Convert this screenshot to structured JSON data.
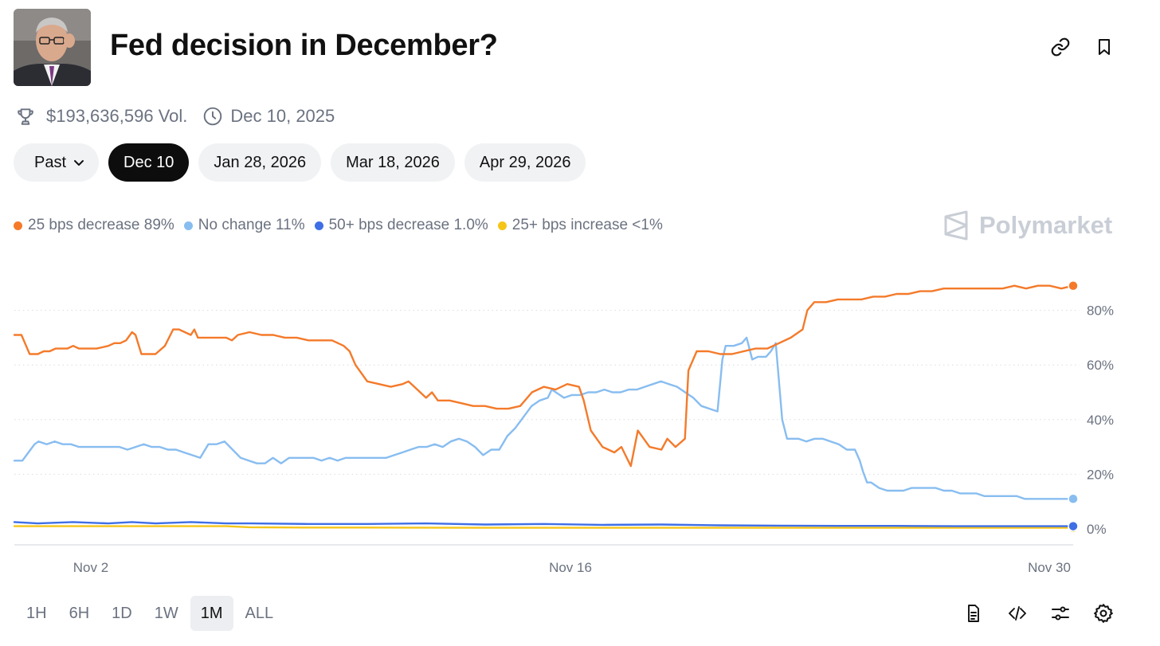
{
  "header": {
    "title": "Fed decision in December?"
  },
  "meta": {
    "volume": "$193,636,596 Vol.",
    "date": "Dec 10, 2025"
  },
  "date_filters": {
    "past_label": "Past",
    "items": [
      "Dec 10",
      "Jan 28, 2026",
      "Mar 18, 2026",
      "Apr 29, 2026"
    ],
    "active": "Dec 10"
  },
  "brand": {
    "name": "Polymarket"
  },
  "legend": [
    {
      "text": "25 bps decrease 89%",
      "color": "#f47a2a"
    },
    {
      "text": "No change 11%",
      "color": "#88bdf0"
    },
    {
      "text": "50+ bps decrease 1.0%",
      "color": "#3f6fe6"
    },
    {
      "text": "25+ bps increase <1%",
      "color": "#f5c518"
    }
  ],
  "time_ranges": {
    "items": [
      "1H",
      "6H",
      "1D",
      "1W",
      "1M",
      "ALL"
    ],
    "active": "1M"
  },
  "toolbar_icons": [
    "document-icon",
    "code-icon",
    "sliders-icon",
    "settings-icon"
  ],
  "chart_data": {
    "type": "line",
    "x_ticks": [
      "Nov 2",
      "Nov 16",
      "Nov 30"
    ],
    "y_ticks": [
      "0%",
      "20%",
      "40%",
      "60%",
      "80%"
    ],
    "ylim": [
      0,
      100
    ],
    "x_range_days": [
      0,
      32
    ],
    "grid": true,
    "series": [
      {
        "name": "25 bps decrease",
        "color": "#f47a2a",
        "points": [
          [
            0,
            71
          ],
          [
            0.6,
            71
          ],
          [
            1,
            67
          ],
          [
            1.3,
            64
          ],
          [
            2,
            64
          ],
          [
            2.5,
            65
          ],
          [
            3,
            65
          ],
          [
            3.5,
            66
          ],
          [
            4.5,
            66
          ],
          [
            5,
            67
          ],
          [
            5.5,
            66
          ],
          [
            6,
            66
          ],
          [
            7,
            66
          ],
          [
            8,
            67
          ],
          [
            8.5,
            68
          ],
          [
            9,
            68
          ],
          [
            9.5,
            69
          ],
          [
            10,
            72
          ],
          [
            10.3,
            71
          ],
          [
            10.8,
            64
          ],
          [
            11.5,
            64
          ],
          [
            12,
            64
          ],
          [
            12.8,
            67
          ],
          [
            13.5,
            73
          ],
          [
            14,
            73
          ],
          [
            15,
            71
          ],
          [
            15.3,
            73
          ],
          [
            15.6,
            70
          ],
          [
            16,
            70
          ],
          [
            17.5,
            70
          ],
          [
            18,
            70
          ],
          [
            18.5,
            69
          ],
          [
            19,
            71
          ],
          [
            20,
            72
          ],
          [
            21,
            71
          ],
          [
            22,
            71
          ],
          [
            23,
            70
          ],
          [
            24,
            70
          ],
          [
            25,
            69
          ],
          [
            26,
            69
          ],
          [
            27,
            69
          ],
          [
            28,
            67
          ],
          [
            28.5,
            65
          ],
          [
            29,
            60
          ],
          [
            30,
            54
          ],
          [
            31,
            53
          ],
          [
            32,
            52
          ],
          [
            33,
            53
          ],
          [
            33.5,
            54
          ],
          [
            34,
            52
          ],
          [
            35,
            48
          ],
          [
            35.5,
            50
          ],
          [
            36,
            47
          ],
          [
            37,
            47
          ],
          [
            38,
            46
          ],
          [
            39,
            45
          ],
          [
            40,
            45
          ],
          [
            41,
            44
          ],
          [
            42,
            44
          ],
          [
            43,
            45
          ],
          [
            44,
            50
          ],
          [
            45,
            52
          ],
          [
            46,
            51
          ],
          [
            47,
            53
          ],
          [
            48,
            52
          ],
          [
            48.4,
            47
          ],
          [
            49,
            36
          ],
          [
            50,
            30
          ],
          [
            51,
            28
          ],
          [
            51.6,
            30
          ],
          [
            52.4,
            23
          ],
          [
            53,
            36
          ],
          [
            53.5,
            33
          ],
          [
            54,
            30
          ],
          [
            55,
            29
          ],
          [
            55.5,
            33
          ],
          [
            56.2,
            30
          ],
          [
            57,
            33
          ],
          [
            57.3,
            58
          ],
          [
            58,
            65
          ],
          [
            59,
            65
          ],
          [
            60,
            64
          ],
          [
            61,
            64
          ],
          [
            62,
            65
          ],
          [
            63,
            66
          ],
          [
            64,
            66
          ],
          [
            65,
            68
          ],
          [
            66,
            70
          ],
          [
            67,
            73
          ],
          [
            67.4,
            80
          ],
          [
            68,
            83
          ],
          [
            69,
            83
          ],
          [
            70,
            84
          ],
          [
            71,
            84
          ],
          [
            72,
            84
          ],
          [
            73,
            85
          ],
          [
            74,
            85
          ],
          [
            75,
            86
          ],
          [
            76,
            86
          ],
          [
            77,
            87
          ],
          [
            78,
            87
          ],
          [
            79,
            88
          ],
          [
            80,
            88
          ],
          [
            81,
            88
          ],
          [
            82,
            88
          ],
          [
            83,
            88
          ],
          [
            84,
            88
          ],
          [
            85,
            89
          ],
          [
            86,
            88
          ],
          [
            87,
            89
          ],
          [
            88,
            89
          ],
          [
            89,
            88
          ],
          [
            90,
            89
          ]
        ]
      },
      {
        "name": "No change",
        "color": "#88bdf0",
        "points": [
          [
            0,
            25
          ],
          [
            1,
            25
          ],
          [
            1.5,
            27
          ],
          [
            2,
            29
          ],
          [
            2.5,
            31
          ],
          [
            3,
            32
          ],
          [
            4,
            31
          ],
          [
            5,
            32
          ],
          [
            6,
            31
          ],
          [
            7,
            31
          ],
          [
            8,
            30
          ],
          [
            9,
            30
          ],
          [
            10,
            30
          ],
          [
            11,
            30
          ],
          [
            12,
            30
          ],
          [
            13,
            30
          ],
          [
            14,
            29
          ],
          [
            15,
            30
          ],
          [
            16,
            31
          ],
          [
            17,
            30
          ],
          [
            18,
            30
          ],
          [
            19,
            29
          ],
          [
            20,
            29
          ],
          [
            21,
            28
          ],
          [
            22,
            27
          ],
          [
            23,
            26
          ],
          [
            24,
            31
          ],
          [
            25,
            31
          ],
          [
            26,
            32
          ],
          [
            27,
            29
          ],
          [
            28,
            26
          ],
          [
            29,
            25
          ],
          [
            30,
            24
          ],
          [
            31,
            24
          ],
          [
            32,
            26
          ],
          [
            33,
            24
          ],
          [
            34,
            26
          ],
          [
            35,
            26
          ],
          [
            36,
            26
          ],
          [
            37,
            26
          ],
          [
            38,
            25
          ],
          [
            39,
            26
          ],
          [
            40,
            25
          ],
          [
            41,
            26
          ],
          [
            42,
            26
          ],
          [
            43,
            26
          ],
          [
            44,
            26
          ],
          [
            45,
            26
          ],
          [
            46,
            26
          ],
          [
            47,
            27
          ],
          [
            48,
            28
          ],
          [
            49,
            29
          ],
          [
            50,
            30
          ],
          [
            51,
            30
          ],
          [
            52,
            31
          ],
          [
            53,
            30
          ],
          [
            54,
            32
          ],
          [
            55,
            33
          ],
          [
            56,
            32
          ],
          [
            57,
            30
          ],
          [
            58,
            27
          ],
          [
            59,
            29
          ],
          [
            60,
            29
          ],
          [
            61,
            34
          ],
          [
            62,
            37
          ],
          [
            63,
            41
          ],
          [
            64,
            45
          ],
          [
            65,
            47
          ],
          [
            66,
            48
          ],
          [
            66.5,
            51
          ],
          [
            67,
            50
          ],
          [
            68,
            48
          ],
          [
            69,
            49
          ],
          [
            70,
            49
          ],
          [
            71,
            50
          ],
          [
            72,
            50
          ],
          [
            73,
            51
          ],
          [
            74,
            50
          ],
          [
            75,
            50
          ],
          [
            76,
            51
          ],
          [
            77,
            51
          ],
          [
            78,
            52
          ],
          [
            79,
            53
          ],
          [
            80,
            54
          ],
          [
            81,
            53
          ],
          [
            82,
            52
          ],
          [
            83,
            50
          ],
          [
            84,
            48
          ],
          [
            85,
            45
          ],
          [
            86,
            44
          ],
          [
            87,
            43
          ],
          [
            87.6,
            62
          ],
          [
            88,
            67
          ],
          [
            89,
            67
          ],
          [
            90,
            68
          ],
          [
            90.6,
            70
          ],
          [
            91.3,
            62
          ],
          [
            92,
            63
          ],
          [
            93,
            63
          ],
          [
            93.6,
            65
          ],
          [
            94.2,
            68
          ],
          [
            95,
            40
          ],
          [
            95.6,
            33
          ],
          [
            96,
            33
          ],
          [
            97,
            33
          ],
          [
            98,
            32
          ],
          [
            99,
            33
          ],
          [
            100,
            33
          ],
          [
            101,
            32
          ],
          [
            102,
            31
          ],
          [
            103,
            29
          ],
          [
            104,
            29
          ],
          [
            104.6,
            25
          ],
          [
            105,
            21
          ],
          [
            105.5,
            17
          ],
          [
            106,
            17
          ],
          [
            107,
            15
          ],
          [
            108,
            14
          ],
          [
            109,
            14
          ],
          [
            110,
            14
          ],
          [
            111,
            15
          ],
          [
            112,
            15
          ],
          [
            113,
            15
          ],
          [
            114,
            15
          ],
          [
            115,
            14
          ],
          [
            116,
            14
          ],
          [
            117,
            13
          ],
          [
            118,
            13
          ],
          [
            119,
            13
          ],
          [
            120,
            12
          ],
          [
            121,
            12
          ],
          [
            122,
            12
          ],
          [
            123,
            12
          ],
          [
            124,
            12
          ],
          [
            125,
            11
          ],
          [
            126,
            11
          ],
          [
            127,
            11
          ],
          [
            128,
            11
          ],
          [
            129,
            11
          ],
          [
            130,
            11
          ],
          [
            131,
            11
          ]
        ]
      },
      {
        "name": "50+ bps decrease",
        "color": "#3f6fe6",
        "points": [
          [
            0,
            2.5
          ],
          [
            2,
            2
          ],
          [
            5,
            2.5
          ],
          [
            8,
            2
          ],
          [
            10,
            2.5
          ],
          [
            12,
            2
          ],
          [
            15,
            2.5
          ],
          [
            18,
            2
          ],
          [
            20,
            2
          ],
          [
            25,
            1.8
          ],
          [
            30,
            1.8
          ],
          [
            35,
            2
          ],
          [
            40,
            1.6
          ],
          [
            45,
            1.8
          ],
          [
            50,
            1.5
          ],
          [
            55,
            1.6
          ],
          [
            60,
            1.3
          ],
          [
            65,
            1.2
          ],
          [
            70,
            1.1
          ],
          [
            75,
            1.1
          ],
          [
            80,
            1
          ],
          [
            85,
            1
          ],
          [
            90,
            1
          ]
        ]
      },
      {
        "name": "25+ bps increase",
        "color": "#f5c518",
        "points": [
          [
            0,
            1
          ],
          [
            5,
            1
          ],
          [
            10,
            1
          ],
          [
            15,
            1
          ],
          [
            18,
            1
          ],
          [
            20,
            0.6
          ],
          [
            25,
            0.5
          ],
          [
            30,
            0.5
          ],
          [
            40,
            0.4
          ],
          [
            50,
            0.4
          ],
          [
            60,
            0.4
          ],
          [
            70,
            0.4
          ],
          [
            80,
            0.4
          ],
          [
            90,
            0.4
          ]
        ]
      }
    ]
  }
}
